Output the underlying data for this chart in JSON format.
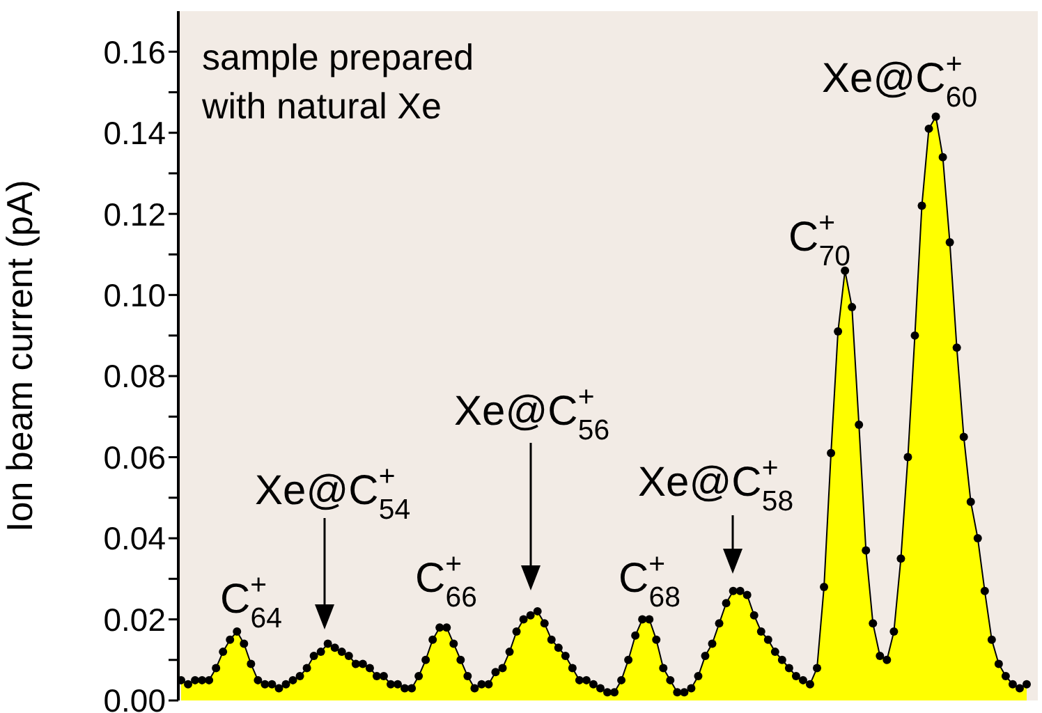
{
  "chart_data": {
    "type": "area",
    "ylabel": "Ion beam current (pA)",
    "annotations": [
      "sample prepared\nwith natural Xe",
      "C$^{+}$$_{64}$",
      "Xe@C$^{+}$$_{54}$",
      "C$^{+}$$_{66}$",
      "Xe@C$^{+}$$_{56}$",
      "C$^{+}$$_{68}$",
      "Xe@C$^{+}$$_{58}$",
      "C$^{+}$$_{70}$",
      "Xe@C$^{+}$$_{60}$"
    ],
    "categories": [
      null,
      null,
      null,
      null,
      null,
      null,
      null,
      null,
      null,
      null,
      null,
      null,
      null,
      null,
      null,
      null,
      null,
      null,
      null,
      null,
      null,
      null,
      null,
      null,
      null,
      null,
      null,
      null,
      null,
      null,
      null,
      null,
      null,
      null,
      null,
      null,
      null,
      null,
      null,
      null,
      null,
      null,
      null,
      null,
      null,
      null,
      null,
      null,
      null,
      null,
      null,
      null,
      null,
      null,
      null,
      null,
      null,
      null,
      null,
      null,
      null,
      null,
      null,
      null,
      null,
      null,
      null,
      null,
      null,
      null,
      null,
      null,
      null,
      null,
      null,
      null,
      null,
      null,
      null,
      null,
      null,
      null,
      null,
      null,
      null,
      null,
      null,
      null,
      null,
      null,
      null,
      null,
      null,
      null,
      null,
      null,
      null,
      null,
      null,
      null,
      null,
      null,
      null,
      null,
      null,
      null,
      null,
      null,
      null,
      null,
      null,
      null,
      null,
      null,
      null,
      null,
      null,
      null,
      null,
      null,
      null,
      null
    ],
    "values": [
      0.005,
      0.004,
      0.005,
      0.005,
      0.005,
      0.008,
      0.012,
      0.015,
      0.017,
      0.014,
      0.009,
      0.005,
      0.004,
      0.004,
      0.003,
      0.004,
      0.005,
      0.006,
      0.008,
      0.011,
      0.012,
      0.014,
      0.013,
      0.012,
      0.011,
      0.009,
      0.009,
      0.008,
      0.006,
      0.006,
      0.004,
      0.004,
      0.003,
      0.003,
      0.006,
      0.01,
      0.015,
      0.018,
      0.018,
      0.014,
      0.01,
      0.006,
      0.003,
      0.004,
      0.004,
      0.007,
      0.008,
      0.012,
      0.017,
      0.02,
      0.021,
      0.022,
      0.019,
      0.015,
      0.013,
      0.011,
      0.008,
      0.005,
      0.005,
      0.004,
      0.003,
      0.002,
      0.002,
      0.005,
      0.01,
      0.016,
      0.02,
      0.02,
      0.015,
      0.008,
      0.005,
      0.002,
      0.002,
      0.003,
      0.006,
      0.011,
      0.014,
      0.019,
      0.024,
      0.027,
      0.027,
      0.026,
      0.021,
      0.017,
      0.015,
      0.012,
      0.01,
      0.008,
      0.006,
      0.005,
      0.004,
      0.008,
      0.028,
      0.061,
      0.091,
      0.106,
      0.097,
      0.068,
      0.037,
      0.019,
      0.011,
      0.01,
      0.017,
      0.035,
      0.06,
      0.09,
      0.122,
      0.141,
      0.144,
      0.134,
      0.113,
      0.087,
      0.065,
      0.049,
      0.04,
      0.027,
      0.015,
      0.009,
      0.006,
      0.004,
      0.003,
      0.004
    ],
    "color": "#ffff00",
    "marker": "circle",
    "ylim": [
      0,
      0.17
    ],
    "yticks": [
      {
        "value": 0,
        "label": "0.00"
      },
      {
        "value": 0.01,
        "label": null
      },
      {
        "value": 0.02,
        "label": "0.02"
      },
      {
        "value": 0.03,
        "label": null
      },
      {
        "value": 0.04,
        "label": "0.04"
      },
      {
        "value": 0.05,
        "label": null
      },
      {
        "value": 0.06,
        "label": "0.06"
      },
      {
        "value": 0.07,
        "label": null
      },
      {
        "value": 0.08,
        "label": "0.08"
      },
      {
        "value": 0.09,
        "label": null
      },
      {
        "value": 0.1,
        "label": "0.10"
      },
      {
        "value": 0.11,
        "label": null
      },
      {
        "value": 0.12,
        "label": "0.12"
      },
      {
        "value": 0.13,
        "label": null
      },
      {
        "value": 0.14,
        "label": "0.14"
      },
      {
        "value": 0.15,
        "label": null
      },
      {
        "value": 0.16,
        "label": "0.16"
      }
    ]
  }
}
